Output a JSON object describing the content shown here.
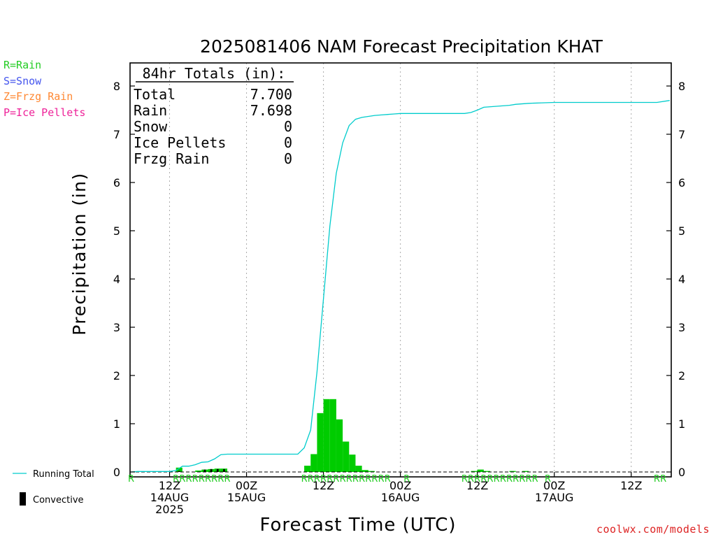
{
  "chart_data": {
    "type": "bar",
    "title": "2025081406 NAM Forecast Precipitation KHAT",
    "xlabel": "Forecast Time (UTC)",
    "ylabel": "Precipitation (in)",
    "ylim": [
      0,
      8.5
    ],
    "y_ticks": [
      0,
      1,
      2,
      3,
      4,
      5,
      6,
      7,
      8
    ],
    "x_range_hours": [
      0,
      84
    ],
    "x_ticks": [
      {
        "hour": 6,
        "lines": [
          "12Z",
          "14AUG",
          "2025"
        ]
      },
      {
        "hour": 18,
        "lines": [
          "00Z",
          "15AUG"
        ]
      },
      {
        "hour": 30,
        "lines": [
          "12Z"
        ]
      },
      {
        "hour": 42,
        "lines": [
          "00Z",
          "16AUG"
        ]
      },
      {
        "hour": 54,
        "lines": [
          "12Z"
        ]
      },
      {
        "hour": 66,
        "lines": [
          "00Z",
          "17AUG"
        ]
      },
      {
        "hour": 78,
        "lines": [
          "12Z"
        ]
      }
    ],
    "totals_box": {
      "header": "84hr Totals (in):",
      "rows": [
        {
          "label": "Total",
          "value": "7.700"
        },
        {
          "label": "Rain",
          "value": "7.698"
        },
        {
          "label": "Snow",
          "value": "0"
        },
        {
          "label": "Ice Pellets",
          "value": "0"
        },
        {
          "label": "Frzg Rain",
          "value": "0"
        }
      ]
    },
    "precip_type_legend": [
      {
        "text": "R=Rain",
        "color": "#22cc22"
      },
      {
        "text": "S=Snow",
        "color": "#4455ee"
      },
      {
        "text": "Z=Frzg Rain",
        "color": "#ff8833"
      },
      {
        "text": "P=Ice Pellets",
        "color": "#ee2299"
      }
    ],
    "series_legend": [
      {
        "name": "Running Total",
        "color": "#00cccc",
        "marker": "line"
      },
      {
        "name": "Convective",
        "color": "#000000",
        "marker": "bar"
      }
    ],
    "series": [
      {
        "name": "Hourly Precipitation",
        "color": "#00cc00",
        "bar_width_hours": 1,
        "bars": [
          {
            "hour": 7.5,
            "value": 0.09
          },
          {
            "hour": 10.5,
            "value": 0.03
          },
          {
            "hour": 11.5,
            "value": 0.05
          },
          {
            "hour": 12.5,
            "value": 0.06
          },
          {
            "hour": 13.5,
            "value": 0.07
          },
          {
            "hour": 14.5,
            "value": 0.07
          },
          {
            "hour": 27.5,
            "value": 0.13
          },
          {
            "hour": 28.5,
            "value": 0.37
          },
          {
            "hour": 29.5,
            "value": 1.22
          },
          {
            "hour": 30.5,
            "value": 1.51
          },
          {
            "hour": 31.5,
            "value": 1.51
          },
          {
            "hour": 32.5,
            "value": 1.09
          },
          {
            "hour": 33.5,
            "value": 0.63
          },
          {
            "hour": 34.5,
            "value": 0.36
          },
          {
            "hour": 35.5,
            "value": 0.13
          },
          {
            "hour": 36.5,
            "value": 0.04
          },
          {
            "hour": 37.5,
            "value": 0.02
          },
          {
            "hour": 53.5,
            "value": 0.02
          },
          {
            "hour": 54.5,
            "value": 0.05
          },
          {
            "hour": 55.5,
            "value": 0.02
          },
          {
            "hour": 59.5,
            "value": 0.02
          },
          {
            "hour": 61.5,
            "value": 0.02
          }
        ]
      },
      {
        "name": "Convective",
        "color": "#000000",
        "bar_width_hours": 0.3,
        "bars": [
          {
            "hour": 7.5,
            "value": 0.02
          },
          {
            "hour": 11.5,
            "value": 0.05
          },
          {
            "hour": 12.5,
            "value": 0.06
          },
          {
            "hour": 13.5,
            "value": 0.06
          },
          {
            "hour": 14.5,
            "value": 0.06
          }
        ]
      },
      {
        "name": "Running Total",
        "color": "#00cccc",
        "x": [
          0,
          1,
          2,
          3,
          4,
          5,
          6,
          7,
          8,
          9,
          10,
          11,
          12,
          13,
          14,
          15,
          16,
          17,
          18,
          19,
          20,
          21,
          22,
          23,
          24,
          25,
          26,
          27,
          28,
          29,
          30,
          31,
          32,
          33,
          34,
          35,
          36,
          37,
          38,
          39,
          40,
          41,
          42,
          44,
          46,
          48,
          50,
          52,
          53,
          54,
          55,
          57,
          59,
          60,
          62,
          64,
          66,
          70,
          74,
          78,
          82,
          84
        ],
        "y": [
          0,
          0.01,
          0.01,
          0.01,
          0.01,
          0.01,
          0.01,
          0.03,
          0.12,
          0.12,
          0.15,
          0.2,
          0.21,
          0.27,
          0.36,
          0.37,
          0.37,
          0.37,
          0.37,
          0.37,
          0.37,
          0.37,
          0.37,
          0.37,
          0.37,
          0.37,
          0.37,
          0.5,
          0.87,
          2.08,
          3.59,
          5.1,
          6.19,
          6.82,
          7.18,
          7.31,
          7.35,
          7.37,
          7.39,
          7.4,
          7.41,
          7.42,
          7.43,
          7.43,
          7.43,
          7.43,
          7.43,
          7.43,
          7.45,
          7.5,
          7.56,
          7.58,
          7.6,
          7.62,
          7.64,
          7.65,
          7.66,
          7.66,
          7.66,
          7.66,
          7.66,
          7.7
        ]
      }
    ],
    "type_letters": [
      {
        "hours": [
          0
        ],
        "letter": "R",
        "color": "#22cc22"
      },
      {
        "hours": [
          7,
          8
        ],
        "letter": "R",
        "color": "#22cc22"
      },
      {
        "hours": [
          9,
          10,
          11,
          12,
          13,
          14,
          15
        ],
        "letter": "R",
        "color": "#22cc22"
      },
      {
        "hours": [
          27,
          28,
          29,
          30,
          31,
          32,
          33,
          34,
          35,
          36,
          37,
          38,
          39,
          40
        ],
        "letter": "R",
        "color": "#22cc22"
      },
      {
        "hours": [
          43
        ],
        "letter": "R",
        "color": "#22cc22"
      },
      {
        "hours": [
          52,
          53,
          54,
          55,
          56,
          57,
          58,
          59,
          60,
          61,
          62,
          63
        ],
        "letter": "R",
        "color": "#22cc22"
      },
      {
        "hours": [
          65
        ],
        "letter": "R",
        "color": "#22cc22"
      },
      {
        "hours": [
          82,
          83
        ],
        "letter": "R",
        "color": "#22cc22"
      }
    ],
    "credit": "coolwx.com/models",
    "credit_color": "#dd2222"
  }
}
